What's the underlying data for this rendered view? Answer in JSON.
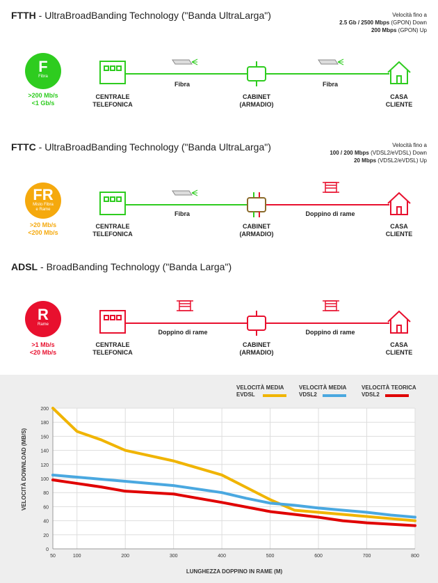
{
  "ftth": {
    "title_bold": "FTTH",
    "title_rest": " - UltraBroadBanding Technology (\"Banda UltraLarga\")",
    "speed_line1": "Velocità fino a",
    "speed_line2_bold": "2.5 Gb / 2500 Mbps",
    "speed_line2_rest": " (GPON) Down",
    "speed_line3_bold": "200 Mbps",
    "speed_line3_rest": " (GPON) Up",
    "badge_letter": "F",
    "badge_sub": "Fibra",
    "badge_color": "#2ecc1f",
    "rate_line1": ">200 Mb/s",
    "rate_line2": "<1 Gb/s",
    "node1_line1": "CENTRALE",
    "node1_line2": "TELEFONICA",
    "node2_line1": "CABINET",
    "node2_line2": "(ARMADIO)",
    "node3_line1": "CASA",
    "node3_line2": "CLIENTE",
    "link1_label": "Fibra",
    "link2_label": "Fibra"
  },
  "fttc": {
    "title_bold": "FTTC",
    "title_rest": " - UltraBroadBanding Technology (\"Banda UltraLarga\")",
    "speed_line1": "Velocità fino a",
    "speed_line2_bold": "100 / 200 Mbps",
    "speed_line2_rest": " (VDSL2/eVDSL) Down",
    "speed_line3_bold": "20 Mbps",
    "speed_line3_rest": " (VDSL2/eVDSL) Up",
    "badge_letter": "FR",
    "badge_sub1": "Misto Fibra",
    "badge_sub2": "e Rame",
    "badge_color": "#f5a90d",
    "rate_line1": ">20 Mb/s",
    "rate_line2": "<200 Mb/s",
    "node1_line1": "CENTRALE",
    "node1_line2": "TELEFONICA",
    "node2_line1": "CABINET",
    "node2_line2": "(ARMADIO)",
    "node3_line1": "CASA",
    "node3_line2": "CLIENTE",
    "link1_label": "Fibra",
    "link2_label": "Doppino di rame"
  },
  "adsl": {
    "title_bold": "ADSL",
    "title_rest": " - BroadBanding Technology (\"Banda Larga\")",
    "badge_letter": "R",
    "badge_sub": "Rame",
    "badge_color": "#e8102e",
    "rate_line1": ">1 Mb/s",
    "rate_line2": "<20 Mb/s",
    "node1_line1": "CENTRALE",
    "node1_line2": "TELEFONICA",
    "node2_line1": "CABINET",
    "node2_line2": "(ARMADIO)",
    "node3_line1": "CASA",
    "node3_line2": "CLIENTE",
    "link1_label": "Doppino di rame",
    "link2_label": "Doppino di rame"
  },
  "colors": {
    "fiber": "#2ecc1f",
    "copper": "#e8102e",
    "mixed": "#8a6a2a"
  },
  "chart_data": {
    "type": "line",
    "xlabel": "LUNGHEZZA DOPPINO IN RAME (M)",
    "ylabel": "VELOCITÀ DOWNLOAD (MB/S)",
    "xlim": [
      50,
      800
    ],
    "ylim": [
      0,
      200
    ],
    "xticks": [
      50,
      100,
      200,
      300,
      400,
      500,
      600,
      700,
      800
    ],
    "yticks": [
      0,
      20,
      40,
      60,
      80,
      100,
      120,
      140,
      160,
      180,
      200
    ],
    "legend_position": "top-right",
    "series": [
      {
        "name_line1": "VELOCITÀ MEDIA",
        "name_line2": "EVDSL",
        "color": "#f0b400",
        "x": [
          50,
          100,
          150,
          200,
          300,
          400,
          500,
          550,
          600,
          650,
          700,
          750,
          800
        ],
        "y": [
          200,
          167,
          155,
          140,
          125,
          105,
          70,
          55,
          52,
          49,
          46,
          43,
          40
        ]
      },
      {
        "name_line1": "VELOCITÀ MEDIA",
        "name_line2": "VDSL2",
        "color": "#4aa8e0",
        "x": [
          50,
          100,
          150,
          200,
          300,
          400,
          450,
          500,
          550,
          600,
          650,
          700,
          750,
          800
        ],
        "y": [
          105,
          102,
          99,
          96,
          90,
          80,
          72,
          65,
          62,
          58,
          55,
          52,
          48,
          45
        ]
      },
      {
        "name_line1": "VELOCITÀ TEORICA",
        "name_line2": "VDSL2",
        "color": "#e00000",
        "x": [
          50,
          100,
          150,
          200,
          300,
          400,
          500,
          550,
          600,
          650,
          700,
          750,
          800
        ],
        "y": [
          98,
          93,
          88,
          82,
          78,
          66,
          53,
          49,
          45,
          40,
          37,
          35,
          33
        ]
      }
    ]
  }
}
